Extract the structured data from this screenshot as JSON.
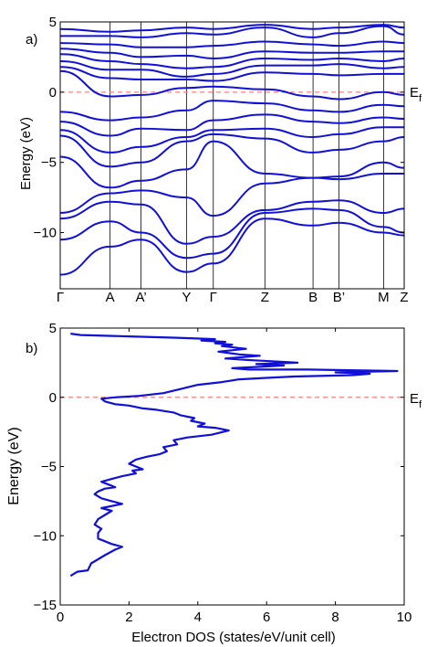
{
  "chart_data": [
    {
      "panel_label": "a)",
      "type": "line",
      "ylabel": "Energy (eV)",
      "ylim": [
        -14,
        5
      ],
      "yticks": [
        5,
        0,
        -5,
        -10
      ],
      "ytick_labels": [
        "5",
        "0",
        "−5",
        "−10"
      ],
      "kpoints": [
        "Γ",
        "A",
        "A’",
        "Y",
        "Γ",
        "Z",
        "B",
        "B’",
        "M",
        "Z"
      ],
      "kpoint_positions": [
        0.0,
        0.145,
        0.235,
        0.367,
        0.445,
        0.595,
        0.735,
        0.81,
        0.94,
        1.0
      ],
      "fermi_level": 0,
      "fermi_label": {
        "main": "E",
        "sub": "f"
      },
      "series": [
        {
          "x": [
            0,
            0.145,
            0.235,
            0.367,
            0.445,
            0.595,
            0.735,
            0.81,
            0.94,
            1.0
          ],
          "values": [
            -13.0,
            -11.0,
            -10.5,
            -12.8,
            -12.2,
            -9.0,
            -9.5,
            -9.3,
            -10.0,
            -10.2
          ]
        },
        {
          "x": [
            0,
            0.145,
            0.235,
            0.367,
            0.445,
            0.595,
            0.735,
            0.81,
            0.94,
            1.0
          ],
          "values": [
            -10.5,
            -9.2,
            -10.0,
            -11.8,
            -11.5,
            -8.6,
            -8.3,
            -8.4,
            -9.6,
            -10.0
          ]
        },
        {
          "x": [
            0,
            0.145,
            0.235,
            0.367,
            0.445,
            0.595,
            0.735,
            0.81,
            0.94,
            1.0
          ],
          "values": [
            -9.0,
            -7.8,
            -8.0,
            -10.8,
            -10.3,
            -8.4,
            -7.8,
            -7.7,
            -8.6,
            -8.3
          ]
        },
        {
          "x": [
            0,
            0.145,
            0.235,
            0.367,
            0.445,
            0.595,
            0.735,
            0.81,
            0.94,
            1.0
          ],
          "values": [
            -8.6,
            -7.2,
            -7.0,
            -7.5,
            -8.8,
            -6.5,
            -6.1,
            -6.2,
            -5.8,
            -5.8
          ]
        },
        {
          "x": [
            0,
            0.145,
            0.235,
            0.367,
            0.445,
            0.595,
            0.735,
            0.81,
            0.94,
            1.0
          ],
          "values": [
            -4.6,
            -6.8,
            -6.3,
            -5.5,
            -3.5,
            -5.8,
            -6.1,
            -6.0,
            -5.0,
            -5.4
          ]
        },
        {
          "x": [
            0,
            0.145,
            0.235,
            0.367,
            0.445,
            0.595,
            0.735,
            0.81,
            0.94,
            1.0
          ],
          "values": [
            -3.1,
            -5.3,
            -5.0,
            -3.5,
            -3.0,
            -3.3,
            -4.3,
            -4.1,
            -3.5,
            -3.2
          ]
        },
        {
          "x": [
            0,
            0.145,
            0.235,
            0.367,
            0.445,
            0.595,
            0.735,
            0.81,
            0.94,
            1.0
          ],
          "values": [
            -2.7,
            -4.3,
            -3.9,
            -3.2,
            -2.7,
            -2.6,
            -3.2,
            -3.0,
            -2.5,
            -2.5
          ]
        },
        {
          "x": [
            0,
            0.145,
            0.235,
            0.367,
            0.445,
            0.595,
            0.735,
            0.81,
            0.94,
            1.0
          ],
          "values": [
            -2.1,
            -3.1,
            -2.6,
            -2.7,
            -2.0,
            -1.6,
            -2.1,
            -2.2,
            -1.8,
            -1.9
          ]
        },
        {
          "x": [
            0,
            0.145,
            0.235,
            0.367,
            0.445,
            0.595,
            0.735,
            0.81,
            0.94,
            1.0
          ],
          "values": [
            -1.4,
            -2.0,
            -1.8,
            -1.3,
            -0.6,
            -0.8,
            -1.3,
            -1.4,
            -0.9,
            -1.0
          ]
        },
        {
          "x": [
            0,
            0.145,
            0.235,
            0.367,
            0.445,
            0.595,
            0.735,
            0.81,
            0.94,
            1.0
          ],
          "values": [
            1.5,
            -0.3,
            -0.2,
            0.3,
            0.4,
            0.2,
            -0.3,
            -0.5,
            0.0,
            -0.2
          ]
        },
        {
          "x": [
            0,
            0.145,
            0.235,
            0.367,
            0.445,
            0.595,
            0.735,
            0.81,
            0.94,
            1.0
          ],
          "values": [
            1.8,
            1.0,
            0.9,
            0.9,
            0.8,
            1.4,
            1.3,
            1.2,
            1.3,
            1.3
          ]
        },
        {
          "x": [
            0,
            0.145,
            0.235,
            0.367,
            0.445,
            0.595,
            0.735,
            0.81,
            0.94,
            1.0
          ],
          "values": [
            2.2,
            1.6,
            1.6,
            1.1,
            1.3,
            1.9,
            1.9,
            2.0,
            1.7,
            1.8
          ]
        },
        {
          "x": [
            0,
            0.145,
            0.235,
            0.367,
            0.445,
            0.595,
            0.735,
            0.81,
            0.94,
            1.0
          ],
          "values": [
            2.7,
            2.2,
            2.0,
            1.7,
            1.8,
            2.4,
            2.3,
            2.4,
            2.2,
            2.4
          ]
        },
        {
          "x": [
            0,
            0.145,
            0.235,
            0.367,
            0.445,
            0.595,
            0.735,
            0.81,
            0.94,
            1.0
          ],
          "values": [
            3.1,
            2.8,
            2.5,
            2.6,
            2.4,
            2.9,
            2.8,
            2.8,
            2.9,
            2.9
          ]
        },
        {
          "x": [
            0,
            0.145,
            0.235,
            0.367,
            0.445,
            0.595,
            0.735,
            0.81,
            0.94,
            1.0
          ],
          "values": [
            3.5,
            3.4,
            3.2,
            3.2,
            3.3,
            3.6,
            3.4,
            3.3,
            3.6,
            3.5
          ]
        },
        {
          "x": [
            0,
            0.145,
            0.235,
            0.367,
            0.445,
            0.595,
            0.735,
            0.81,
            0.94,
            1.0
          ],
          "values": [
            4.0,
            4.0,
            3.9,
            4.2,
            4.1,
            4.6,
            3.9,
            4.2,
            4.7,
            4.1
          ]
        },
        {
          "x": [
            0,
            0.145,
            0.235,
            0.367,
            0.445,
            0.595,
            0.735,
            0.81,
            0.94,
            1.0
          ],
          "values": [
            4.5,
            4.3,
            4.4,
            4.6,
            4.5,
            4.8,
            4.5,
            4.6,
            4.8,
            4.6
          ]
        }
      ]
    },
    {
      "panel_label": "b)",
      "type": "line",
      "xlabel": "Electron DOS (states/eV/unit cell)",
      "ylabel": "Energy (eV)",
      "xlim": [
        0,
        10
      ],
      "ylim": [
        -15,
        5
      ],
      "xticks": [
        0,
        2,
        4,
        6,
        8,
        10
      ],
      "xtick_labels": [
        "0",
        "2",
        "4",
        "6",
        "8",
        "10"
      ],
      "yticks": [
        5,
        0,
        -5,
        -10,
        -15
      ],
      "ytick_labels": [
        "5",
        "0",
        "−5",
        "−10",
        "−15"
      ],
      "fermi_level": 0,
      "fermi_label": {
        "main": "E",
        "sub": "f"
      },
      "dos": [
        [
          0.3,
          -12.9
        ],
        [
          0.5,
          -12.6
        ],
        [
          0.8,
          -12.5
        ],
        [
          0.9,
          -12.0
        ],
        [
          1.1,
          -11.7
        ],
        [
          1.3,
          -11.4
        ],
        [
          1.6,
          -11.0
        ],
        [
          1.8,
          -10.8
        ],
        [
          1.5,
          -10.6
        ],
        [
          1.3,
          -10.4
        ],
        [
          1.1,
          -10.2
        ],
        [
          1.1,
          -9.8
        ],
        [
          1.2,
          -9.5
        ],
        [
          1.0,
          -9.2
        ],
        [
          1.1,
          -8.8
        ],
        [
          1.3,
          -8.5
        ],
        [
          1.5,
          -8.2
        ],
        [
          1.2,
          -8.0
        ],
        [
          1.8,
          -7.7
        ],
        [
          1.5,
          -7.5
        ],
        [
          1.2,
          -7.3
        ],
        [
          1.0,
          -7.0
        ],
        [
          1.1,
          -6.8
        ],
        [
          1.3,
          -6.6
        ],
        [
          1.6,
          -6.5
        ],
        [
          1.4,
          -6.3
        ],
        [
          1.2,
          -6.1
        ],
        [
          1.5,
          -5.9
        ],
        [
          1.8,
          -5.7
        ],
        [
          2.2,
          -5.5
        ],
        [
          2.1,
          -5.3
        ],
        [
          2.4,
          -5.2
        ],
        [
          2.2,
          -5.0
        ],
        [
          2.0,
          -4.8
        ],
        [
          2.2,
          -4.5
        ],
        [
          2.5,
          -4.3
        ],
        [
          2.9,
          -4.1
        ],
        [
          3.1,
          -3.9
        ],
        [
          3.0,
          -3.6
        ],
        [
          3.4,
          -3.4
        ],
        [
          3.3,
          -3.1
        ],
        [
          3.7,
          -2.9
        ],
        [
          4.4,
          -2.7
        ],
        [
          4.9,
          -2.4
        ],
        [
          4.5,
          -2.2
        ],
        [
          4.0,
          -2.1
        ],
        [
          4.2,
          -1.9
        ],
        [
          3.8,
          -1.7
        ],
        [
          3.9,
          -1.5
        ],
        [
          3.5,
          -1.3
        ],
        [
          3.3,
          -1.1
        ],
        [
          2.8,
          -0.9
        ],
        [
          2.4,
          -0.8
        ],
        [
          2.0,
          -0.6
        ],
        [
          1.6,
          -0.5
        ],
        [
          1.3,
          -0.3
        ],
        [
          1.2,
          -0.1
        ],
        [
          1.6,
          0.0
        ],
        [
          2.3,
          0.1
        ],
        [
          3.0,
          0.3
        ],
        [
          3.5,
          0.6
        ],
        [
          4.0,
          0.9
        ],
        [
          4.7,
          1.1
        ],
        [
          5.2,
          1.3
        ],
        [
          6.0,
          1.4
        ],
        [
          6.8,
          1.5
        ],
        [
          8.5,
          1.6
        ],
        [
          9.0,
          1.7
        ],
        [
          8.0,
          1.8
        ],
        [
          9.8,
          1.9
        ],
        [
          7.2,
          2.0
        ],
        [
          5.5,
          2.0
        ],
        [
          5.0,
          2.1
        ],
        [
          5.8,
          2.2
        ],
        [
          6.5,
          2.3
        ],
        [
          5.7,
          2.4
        ],
        [
          6.9,
          2.5
        ],
        [
          5.4,
          2.7
        ],
        [
          4.8,
          2.8
        ],
        [
          5.3,
          2.9
        ],
        [
          5.8,
          3.0
        ],
        [
          5.2,
          3.1
        ],
        [
          4.6,
          3.3
        ],
        [
          5.4,
          3.5
        ],
        [
          4.7,
          3.7
        ],
        [
          5.0,
          3.8
        ],
        [
          4.5,
          3.9
        ],
        [
          4.8,
          4.0
        ],
        [
          4.1,
          4.1
        ],
        [
          4.5,
          4.2
        ],
        [
          3.4,
          4.3
        ],
        [
          2.0,
          4.4
        ],
        [
          0.6,
          4.5
        ],
        [
          0.3,
          4.6
        ]
      ]
    }
  ]
}
